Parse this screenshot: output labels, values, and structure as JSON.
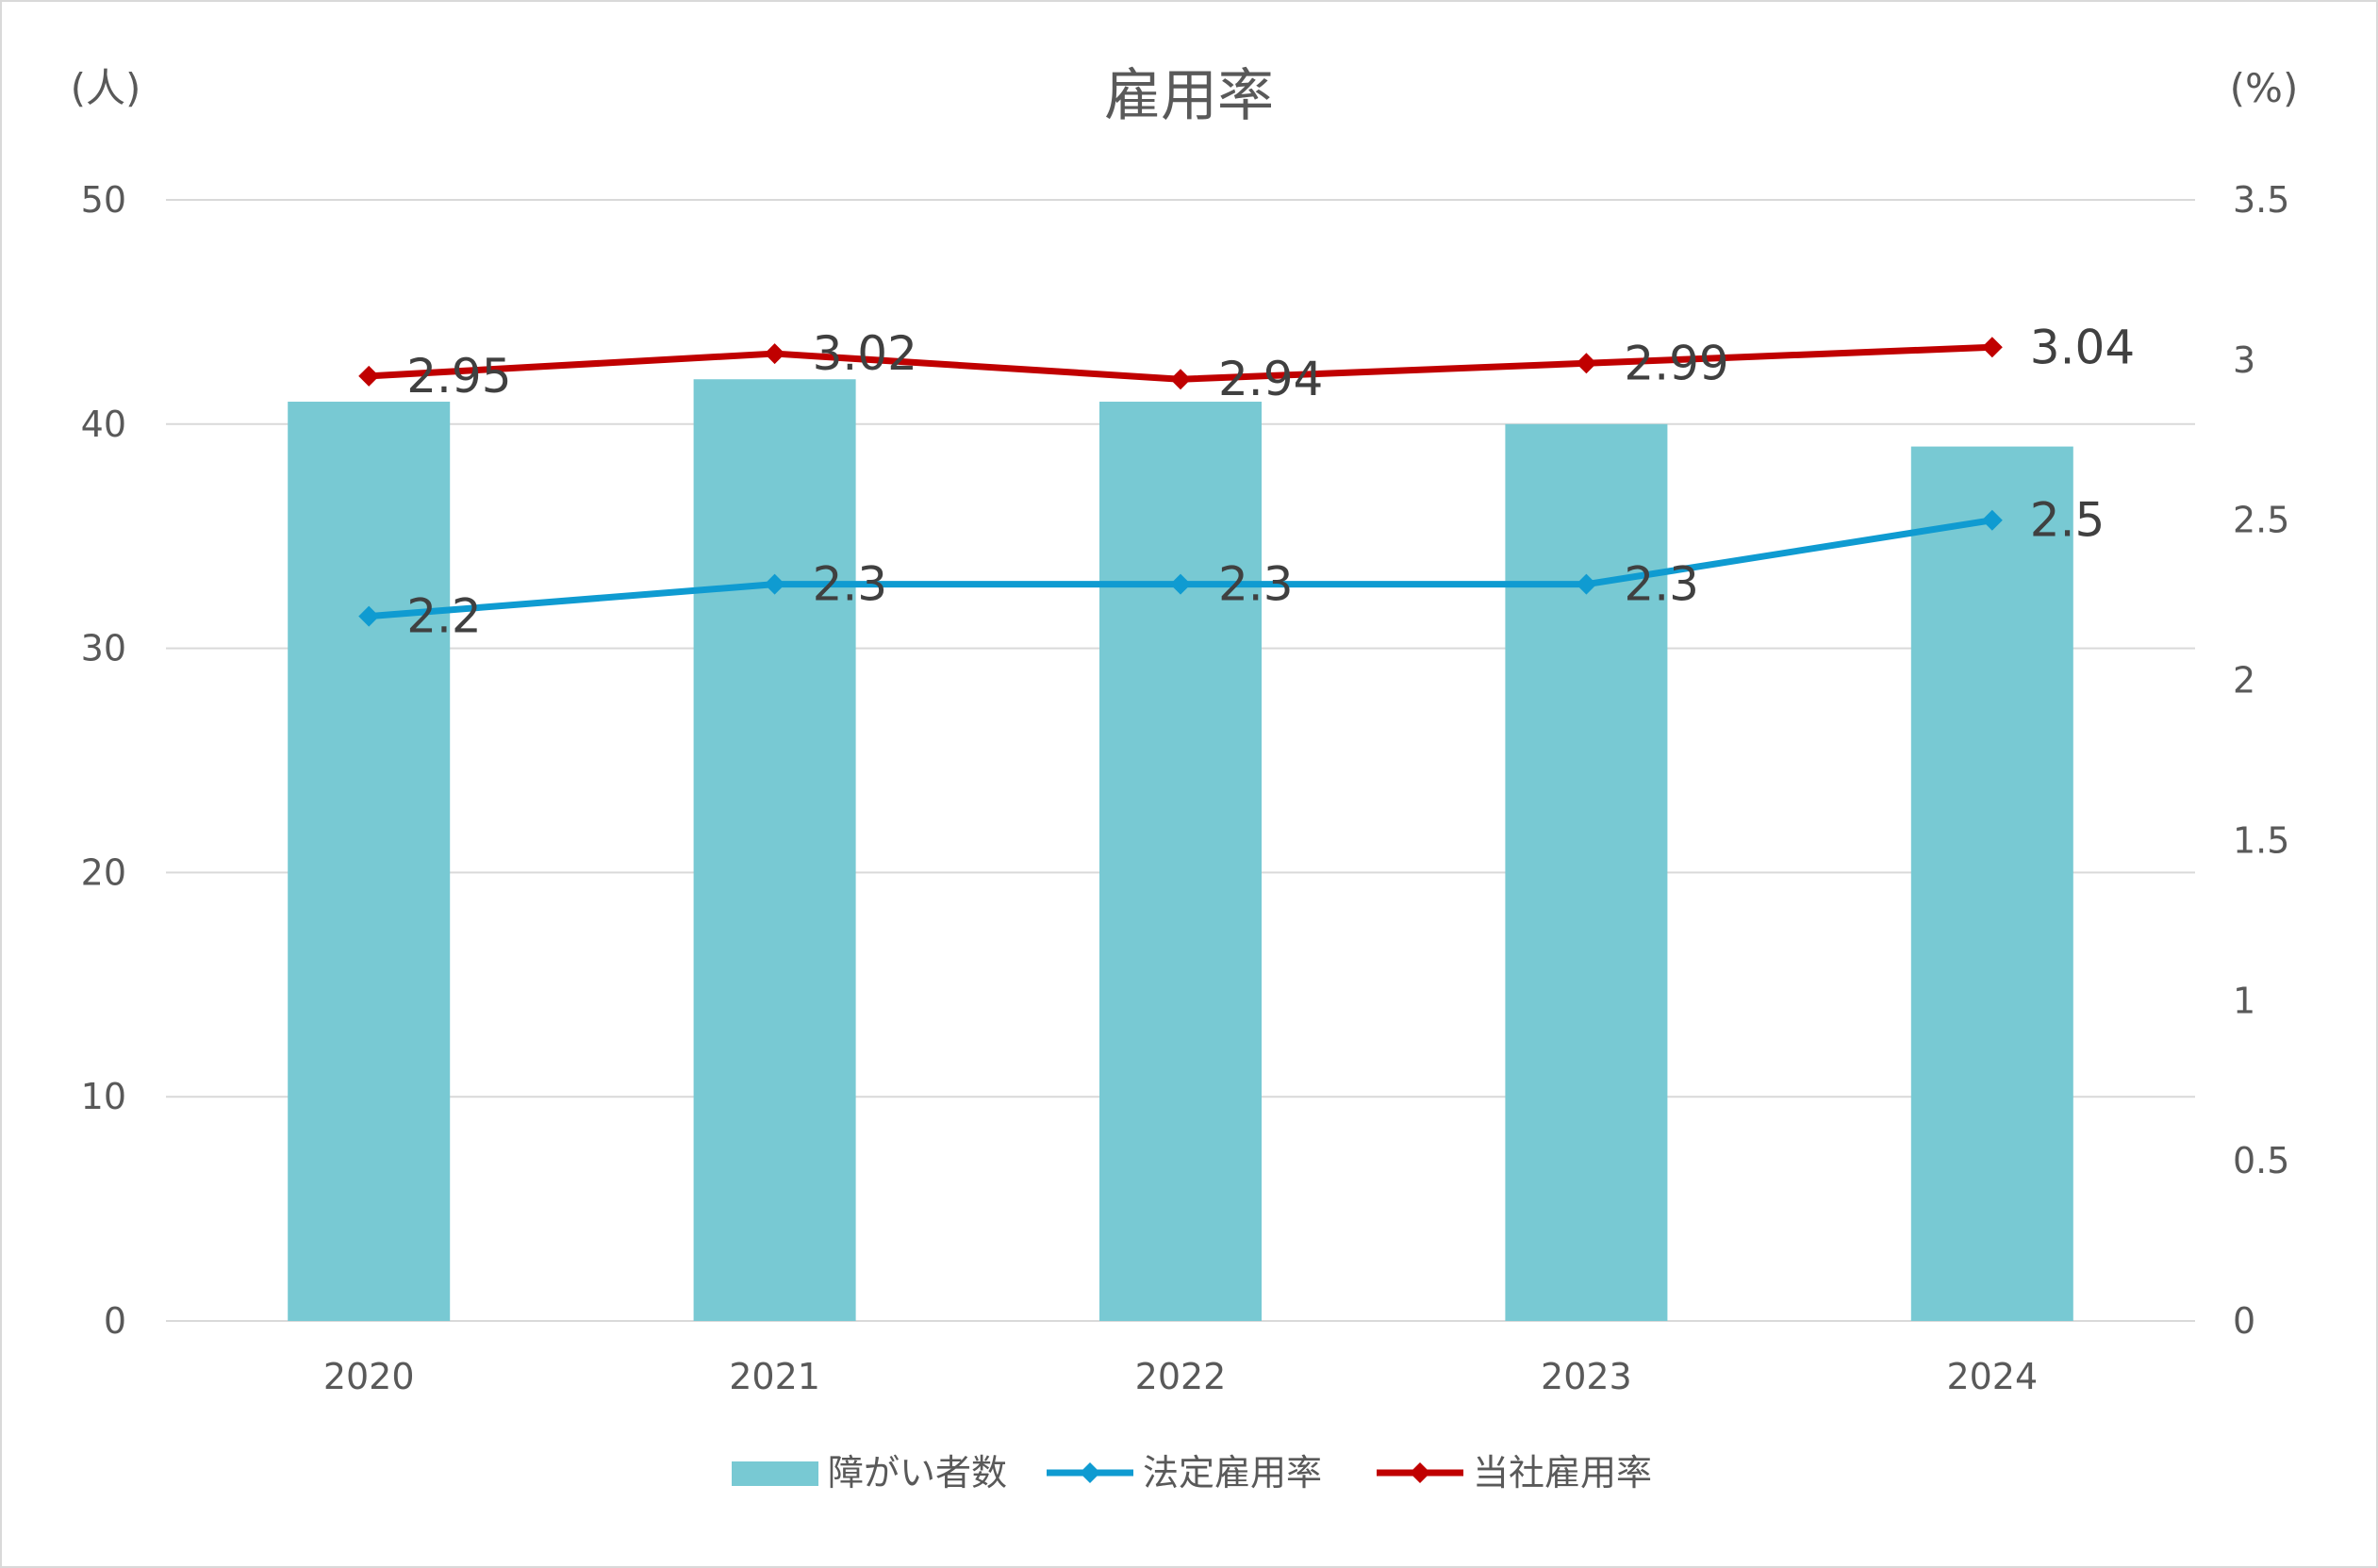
{
  "chart_data": {
    "type": "bar",
    "title": "雇用率",
    "left_axis_unit": "(人)",
    "right_axis_unit": "(%)",
    "categories": [
      "2020",
      "2021",
      "2022",
      "2023",
      "2024"
    ],
    "ylim": [
      0,
      50
    ],
    "y2lim": [
      0,
      3.5
    ],
    "yticks": [
      "0",
      "10",
      "20",
      "30",
      "40",
      "50"
    ],
    "y2ticks": [
      "0",
      "0.5",
      "1",
      "1.5",
      "2",
      "2.5",
      "3",
      "3.5"
    ],
    "grid": true,
    "legend_position": "bottom",
    "series": [
      {
        "name": "障がい者数",
        "type": "bar",
        "axis": "left",
        "color": "#78c9d3",
        "values": [
          41,
          42,
          41,
          40,
          39
        ]
      },
      {
        "name": "法定雇用率",
        "type": "line",
        "axis": "right",
        "color": "#0f9bd1",
        "marker": "diamond",
        "values": [
          2.2,
          2.3,
          2.3,
          2.3,
          2.5
        ],
        "labels": [
          "2.2",
          "2.3",
          "2.3",
          "2.3",
          "2.5"
        ]
      },
      {
        "name": "当社雇用率",
        "type": "line",
        "axis": "right",
        "color": "#c00000",
        "marker": "diamond",
        "values": [
          2.95,
          3.02,
          2.94,
          2.99,
          3.04
        ],
        "labels": [
          "2.95",
          "3.02",
          "2.94",
          "2.99",
          "3.04"
        ]
      }
    ]
  }
}
